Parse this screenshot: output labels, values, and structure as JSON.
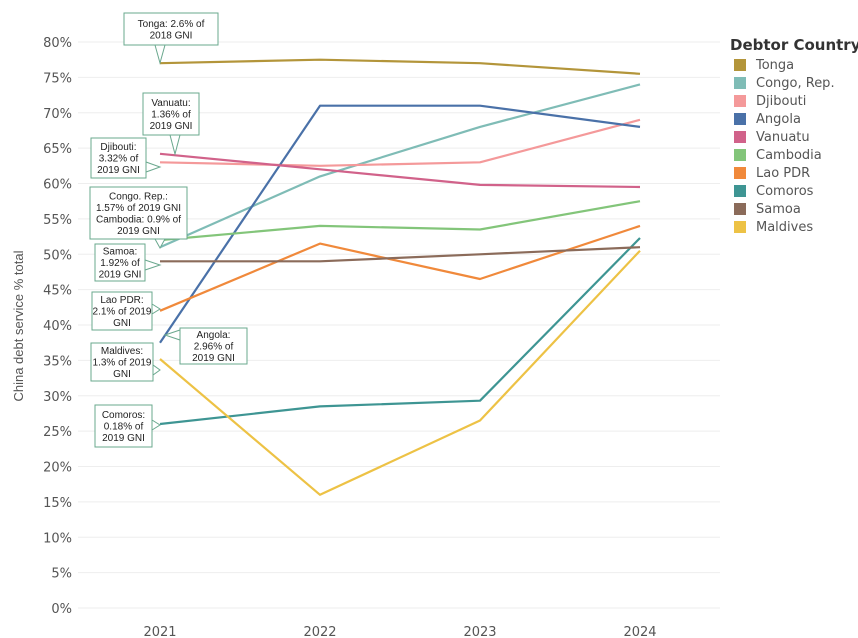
{
  "chart_data": {
    "type": "line",
    "title": "",
    "xlabel": "",
    "ylabel": "China debt service % total",
    "x": [
      "2021",
      "2022",
      "2023",
      "2024"
    ],
    "ylim": [
      0,
      80
    ],
    "y_ticks": [
      "0%",
      "5%",
      "10%",
      "15%",
      "20%",
      "25%",
      "30%",
      "35%",
      "40%",
      "45%",
      "50%",
      "55%",
      "60%",
      "65%",
      "70%",
      "75%",
      "80%"
    ],
    "grid": true,
    "legend_title": "Debtor Country",
    "legend_position": "right",
    "series": [
      {
        "name": "Tonga",
        "color": "#b3953a",
        "values": [
          77,
          77.5,
          77,
          75.5
        ]
      },
      {
        "name": "Congo, Rep.",
        "color": "#7fbcb6",
        "values": [
          51,
          61,
          68,
          74
        ]
      },
      {
        "name": "Djibouti",
        "color": "#f4999a",
        "values": [
          63,
          62.5,
          63,
          69
        ]
      },
      {
        "name": "Angola",
        "color": "#4a71a8",
        "values": [
          37.5,
          71,
          71,
          68
        ]
      },
      {
        "name": "Vanuatu",
        "color": "#d1628a",
        "values": [
          64.2,
          62,
          59.8,
          59.5
        ]
      },
      {
        "name": "Cambodia",
        "color": "#83c57a",
        "values": [
          52,
          54,
          53.5,
          57.5
        ]
      },
      {
        "name": "Lao PDR",
        "color": "#f0893b",
        "values": [
          42,
          51.5,
          46.5,
          54
        ]
      },
      {
        "name": "Comoros",
        "color": "#3e9593",
        "values": [
          26,
          28.5,
          29.3,
          52.3
        ]
      },
      {
        "name": "Samoa",
        "color": "#8b6b5a",
        "values": [
          49,
          49,
          50,
          51
        ]
      },
      {
        "name": "Maldives",
        "color": "#edc245",
        "values": [
          35.2,
          16,
          26.5,
          50.5
        ]
      }
    ],
    "annotations": [
      {
        "lines": [
          "Tonga: 2.6% of",
          "2018 GNI"
        ]
      },
      {
        "lines": [
          "Vanuatu:",
          "1.36% of",
          "2019 GNI"
        ]
      },
      {
        "lines": [
          "Djibouti:",
          "3.32% of",
          "2019 GNI"
        ]
      },
      {
        "lines": [
          "Congo. Rep.:",
          "1.57% of 2019 GNI",
          "Cambodia: 0.9% of",
          "2019 GNI"
        ]
      },
      {
        "lines": [
          "Samoa:",
          "1.92% of",
          "2019 GNI"
        ]
      },
      {
        "lines": [
          "Lao PDR:",
          "2.1% of 2019",
          "GNI"
        ]
      },
      {
        "lines": [
          "Angola:",
          "2.96% of",
          "2019 GNI"
        ]
      },
      {
        "lines": [
          "Maldives:",
          "1.3% of 2019",
          "GNI"
        ]
      },
      {
        "lines": [
          "Comoros:",
          "0.18% of",
          "2019 GNI"
        ]
      }
    ]
  }
}
